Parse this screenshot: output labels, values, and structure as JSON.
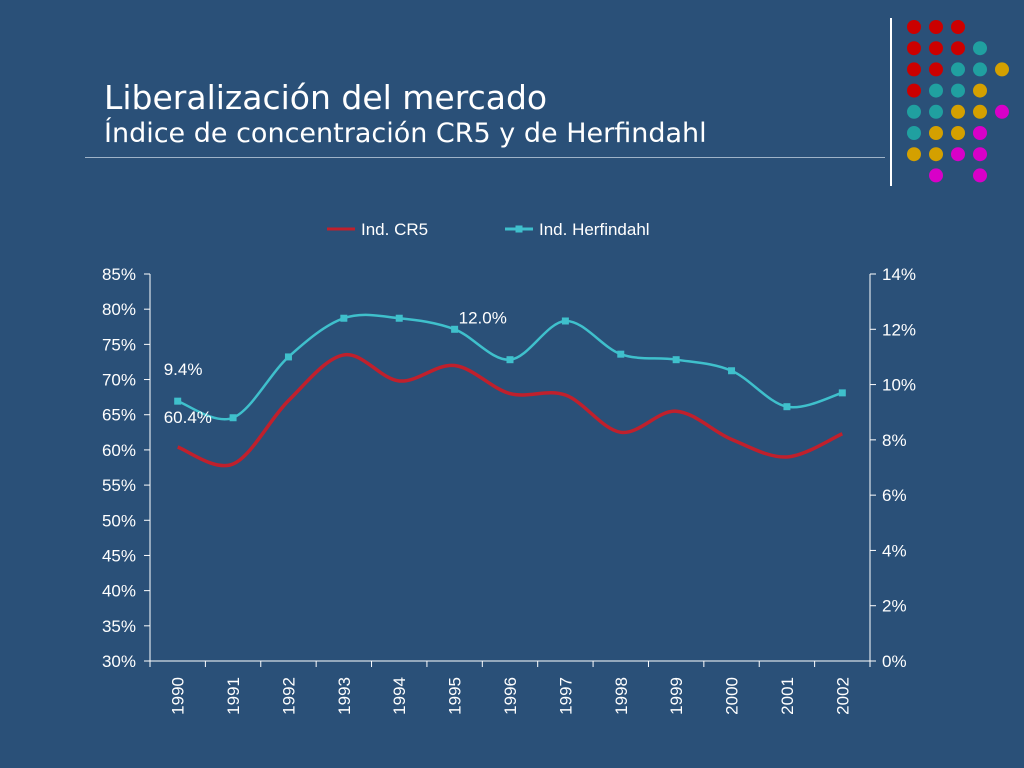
{
  "slide": {
    "title": "Liberalización del mercado",
    "subtitle": "Índice de concentración CR5 y de Herfindahl"
  },
  "colors": {
    "background": "#2a5078",
    "cr5": "#c0202c",
    "herfindahl": "#3fc0cc",
    "dot_red": "#cc0000",
    "dot_teal": "#20a0a0",
    "dot_gold": "#d4a000",
    "dot_magenta": "#d800c8"
  },
  "decor_dots": [
    [
      "red",
      "red",
      "red",
      null,
      null
    ],
    [
      "red",
      "red",
      "red",
      "teal",
      null
    ],
    [
      "red",
      "red",
      "teal",
      "teal",
      "gold"
    ],
    [
      "red",
      "teal",
      "teal",
      "gold",
      null
    ],
    [
      "teal",
      "teal",
      "gold",
      "gold",
      "magenta"
    ],
    [
      "teal",
      "gold",
      "gold",
      "magenta",
      null
    ],
    [
      "gold",
      "gold",
      "magenta",
      "magenta",
      null
    ],
    [
      null,
      "magenta",
      null,
      "magenta",
      null
    ]
  ],
  "chart_data": {
    "type": "line",
    "categories": [
      "1990",
      "1991",
      "1992",
      "1993",
      "1994",
      "1995",
      "1996",
      "1997",
      "1998",
      "1999",
      "2000",
      "2001",
      "2002"
    ],
    "series": [
      {
        "name": "Ind. CR5",
        "axis": "left",
        "marker": "none",
        "values": [
          60.4,
          58.0,
          67.0,
          73.5,
          69.8,
          72.0,
          68.0,
          67.8,
          62.5,
          65.5,
          61.5,
          59.0,
          62.3
        ]
      },
      {
        "name": "Ind. Herfindahl",
        "axis": "right",
        "marker": "square",
        "values": [
          9.4,
          8.8,
          11.0,
          12.4,
          12.4,
          12.0,
          10.9,
          12.3,
          11.1,
          10.9,
          10.5,
          9.2,
          9.7
        ]
      }
    ],
    "y_left": {
      "min": 30,
      "max": 85,
      "step": 5,
      "format": "percent"
    },
    "y_right": {
      "min": 0,
      "max": 14,
      "step": 2,
      "format": "percent"
    },
    "legend": "top",
    "grid": false,
    "annotations": [
      {
        "text": "9.4%",
        "series": "Ind. Herfindahl",
        "category": "1990"
      },
      {
        "text": "60.4%",
        "series": "Ind. CR5",
        "category": "1990"
      },
      {
        "text": "12.0%",
        "series": "Ind. Herfindahl",
        "category": "1995"
      }
    ]
  }
}
